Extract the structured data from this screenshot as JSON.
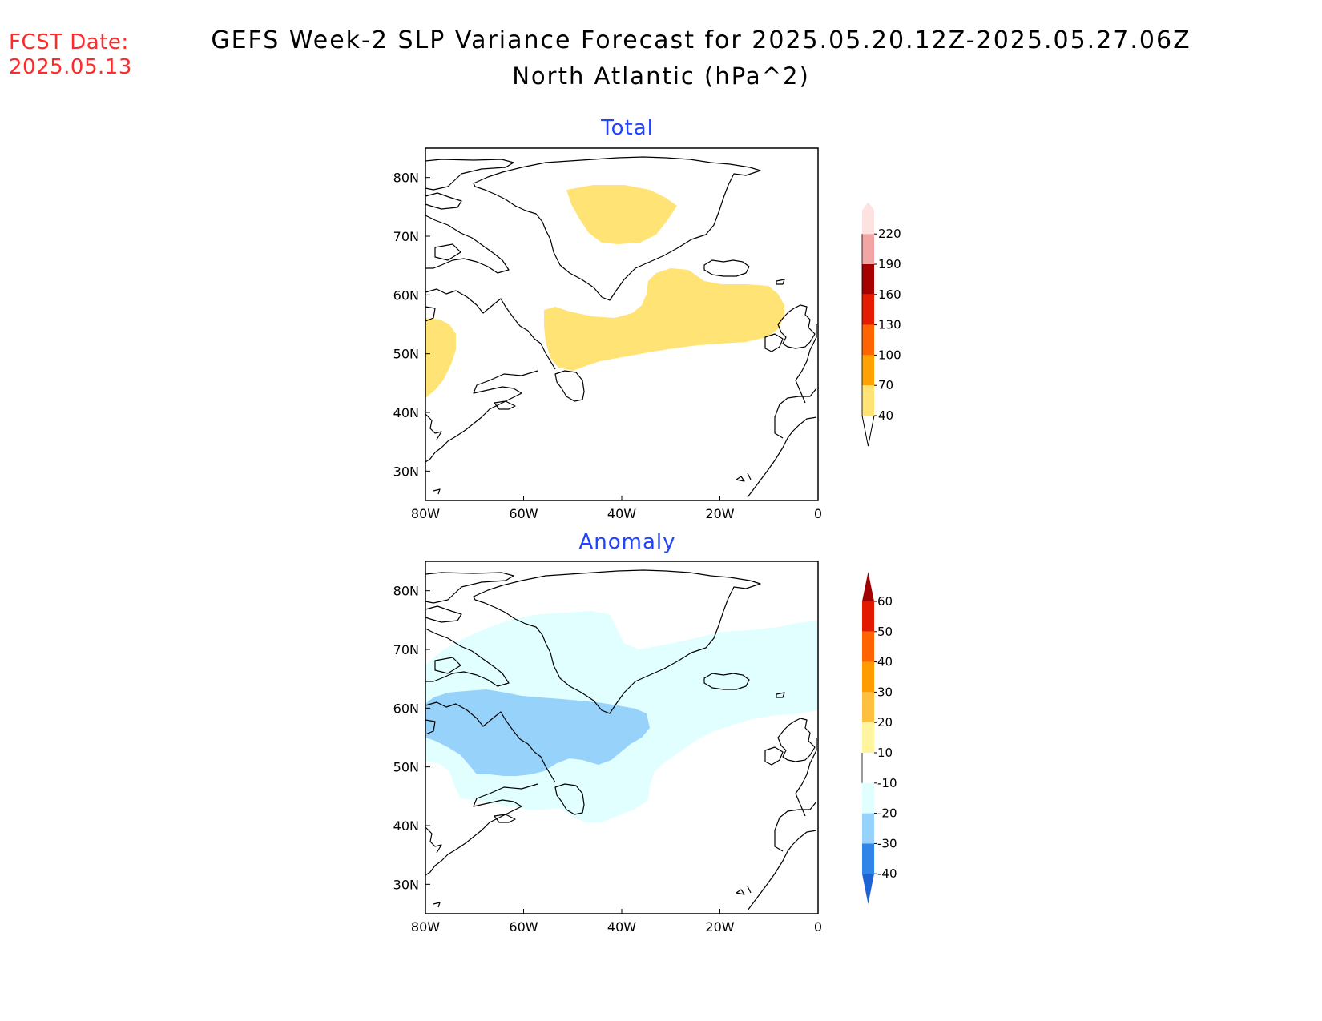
{
  "fcst": {
    "label": "FCST Date:",
    "date": "2025.05.13"
  },
  "title": {
    "line1": "GEFS Week-2 SLP Variance Forecast for 2025.05.20.12Z-2025.05.27.06Z",
    "line2": "North Atlantic (hPa^2)"
  },
  "axes": {
    "lat_labels": [
      "80N",
      "70N",
      "60N",
      "50N",
      "40N",
      "30N"
    ],
    "lat_values": [
      80,
      70,
      60,
      50,
      40,
      30
    ],
    "lon_labels": [
      "80W",
      "60W",
      "40W",
      "20W",
      "0"
    ],
    "lon_values": [
      -80,
      -60,
      -40,
      -20,
      0
    ],
    "lon_range": [
      -80,
      0
    ],
    "lat_range": [
      25,
      85
    ]
  },
  "panels": [
    {
      "id": "total",
      "title": "Total",
      "colorbar": {
        "levels": [
          "40",
          "70",
          "100",
          "130",
          "160",
          "190",
          "220"
        ],
        "colors": [
          "#ffe375",
          "#ffa100",
          "#ff6400",
          "#e41c00",
          "#a60000",
          "#f3a5a5",
          "#fde2e2"
        ]
      },
      "shaded_regions": [
        {
          "name": "greenland-high",
          "range": "40-70",
          "color": "#ffe375"
        },
        {
          "name": "north-atlantic-band",
          "range": "40-70",
          "color": "#ffe375"
        },
        {
          "name": "western-edge",
          "range": "40-70",
          "color": "#ffe375"
        }
      ]
    },
    {
      "id": "anomaly",
      "title": "Anomaly",
      "colorbar": {
        "levels": [
          "60",
          "50",
          "40",
          "30",
          "20",
          "10",
          "-10",
          "-20",
          "-30",
          "-40"
        ],
        "colors_top_to_bottom": [
          "#a00000",
          "#e31800",
          "#ff6400",
          "#ff9c00",
          "#ffbf3f",
          "#fff5a0",
          "#ffffff",
          "#e1ffff",
          "#97d2fb",
          "#2f86e8",
          "#1e63d3"
        ]
      },
      "shaded_regions": [
        {
          "name": "light-negative",
          "range": "-20--10",
          "color": "#e1ffff"
        },
        {
          "name": "moderate-negative",
          "range": "-30--20",
          "color": "#97d2fb"
        }
      ]
    }
  ]
}
